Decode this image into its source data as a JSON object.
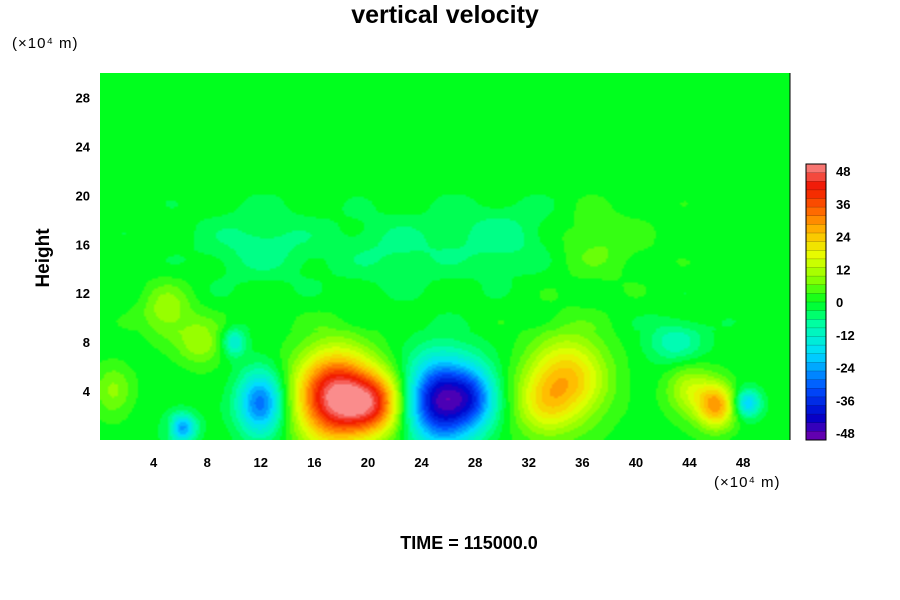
{
  "chart_data": {
    "type": "heatmap",
    "title": "vertical velocity",
    "ylabel": "Height",
    "xlabel": "",
    "y_unit": "(×10⁴ m)",
    "x_unit": "(×10⁴ m)",
    "xlim": [
      0,
      51.5
    ],
    "ylim": [
      0,
      30
    ],
    "xticks": [
      "4",
      "8",
      "12",
      "16",
      "20",
      "24",
      "28",
      "32",
      "36",
      "40",
      "44",
      "48"
    ],
    "yticks": [
      "4",
      "8",
      "12",
      "16",
      "20",
      "24",
      "28"
    ],
    "colorbar": {
      "ticks": [
        "48",
        "36",
        "24",
        "12",
        "0",
        "-12",
        "-24",
        "-36",
        "-48"
      ],
      "range": [
        -48,
        48
      ]
    },
    "background_value": 0,
    "features": [
      {
        "x": 17.5,
        "y": 3.5,
        "sx": 2.0,
        "sy": 2.6,
        "value": 46
      },
      {
        "x": 20.5,
        "y": 3.0,
        "sx": 1.6,
        "sy": 1.8,
        "value": 30
      },
      {
        "x": 25.5,
        "y": 3.2,
        "sx": 1.8,
        "sy": 2.4,
        "value": -44
      },
      {
        "x": 28.0,
        "y": 3.5,
        "sx": 1.2,
        "sy": 1.8,
        "value": -18
      },
      {
        "x": 12.0,
        "y": 3.0,
        "sx": 1.2,
        "sy": 1.8,
        "value": -28
      },
      {
        "x": 35.0,
        "y": 5.0,
        "sx": 2.0,
        "sy": 2.5,
        "value": 22
      },
      {
        "x": 33.0,
        "y": 3.0,
        "sx": 1.5,
        "sy": 2.0,
        "value": 12
      },
      {
        "x": 46.0,
        "y": 2.8,
        "sx": 1.0,
        "sy": 1.3,
        "value": 26
      },
      {
        "x": 44.0,
        "y": 4.0,
        "sx": 1.2,
        "sy": 1.5,
        "value": 12
      },
      {
        "x": 48.3,
        "y": 3.0,
        "sx": 0.7,
        "sy": 0.8,
        "value": -20
      },
      {
        "x": 6.0,
        "y": 1.0,
        "sx": 0.8,
        "sy": 0.8,
        "value": -26
      },
      {
        "x": 5.3,
        "y": 1.0,
        "sx": 0.5,
        "sy": 0.6,
        "value": 10
      },
      {
        "x": 10.0,
        "y": 8.0,
        "sx": 0.6,
        "sy": 0.8,
        "value": -14
      },
      {
        "x": 7.5,
        "y": 8.0,
        "sx": 1.2,
        "sy": 1.3,
        "value": 10
      },
      {
        "x": 5.0,
        "y": 10.5,
        "sx": 1.3,
        "sy": 1.5,
        "value": 10
      },
      {
        "x": 1.0,
        "y": 4.0,
        "sx": 1.0,
        "sy": 1.5,
        "value": 8
      },
      {
        "x": 43.0,
        "y": 8.0,
        "sx": 1.5,
        "sy": 1.2,
        "value": -10
      },
      {
        "x": 30.0,
        "y": 16.5,
        "sx": 3.0,
        "sy": 2.0,
        "value": -6
      },
      {
        "x": 37.0,
        "y": 16.0,
        "sx": 2.5,
        "sy": 2.0,
        "value": 5
      },
      {
        "x": 12.0,
        "y": 16.0,
        "sx": 3.0,
        "sy": 2.0,
        "value": -6
      },
      {
        "x": 22.0,
        "y": 15.5,
        "sx": 3.0,
        "sy": 2.0,
        "value": -5
      }
    ]
  },
  "footer": {
    "time_label": "TIME = 115000.0"
  }
}
